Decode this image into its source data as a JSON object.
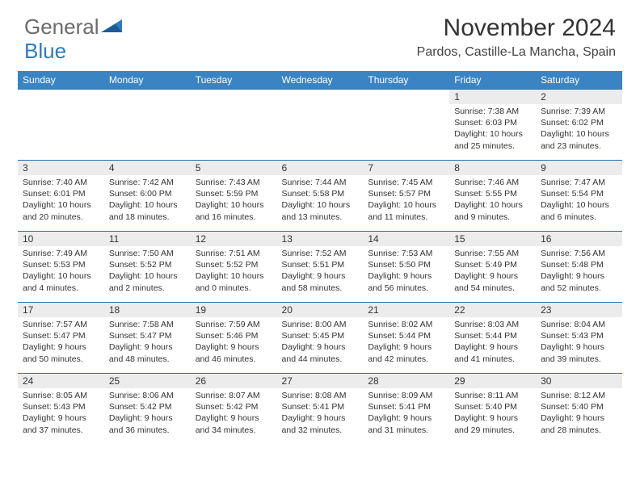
{
  "brand": {
    "part1": "General",
    "part2": "Blue"
  },
  "title": "November 2024",
  "location": "Pardos, Castille-La Mancha, Spain",
  "colors": {
    "header_bg": "#3a84c4",
    "header_text": "#ffffff",
    "border": "#2d6fa8",
    "daynum_bg": "#ececec",
    "text": "#333333",
    "brand_gray": "#6b6b6b",
    "brand_blue": "#2d7bc0",
    "page_bg": "#ffffff"
  },
  "typography": {
    "title_fontsize": 30,
    "location_fontsize": 16,
    "header_fontsize": 12,
    "daynum_fontsize": 12,
    "cell_fontsize": 10.5
  },
  "layout": {
    "cols": 7,
    "rows": 5,
    "first_day_col": 5
  },
  "dayHeaders": [
    "Sunday",
    "Monday",
    "Tuesday",
    "Wednesday",
    "Thursday",
    "Friday",
    "Saturday"
  ],
  "days": [
    {
      "n": "1",
      "sr": "7:38 AM",
      "ss": "6:03 PM",
      "dl": "10 hours and 25 minutes."
    },
    {
      "n": "2",
      "sr": "7:39 AM",
      "ss": "6:02 PM",
      "dl": "10 hours and 23 minutes."
    },
    {
      "n": "3",
      "sr": "7:40 AM",
      "ss": "6:01 PM",
      "dl": "10 hours and 20 minutes."
    },
    {
      "n": "4",
      "sr": "7:42 AM",
      "ss": "6:00 PM",
      "dl": "10 hours and 18 minutes."
    },
    {
      "n": "5",
      "sr": "7:43 AM",
      "ss": "5:59 PM",
      "dl": "10 hours and 16 minutes."
    },
    {
      "n": "6",
      "sr": "7:44 AM",
      "ss": "5:58 PM",
      "dl": "10 hours and 13 minutes."
    },
    {
      "n": "7",
      "sr": "7:45 AM",
      "ss": "5:57 PM",
      "dl": "10 hours and 11 minutes."
    },
    {
      "n": "8",
      "sr": "7:46 AM",
      "ss": "5:55 PM",
      "dl": "10 hours and 9 minutes."
    },
    {
      "n": "9",
      "sr": "7:47 AM",
      "ss": "5:54 PM",
      "dl": "10 hours and 6 minutes."
    },
    {
      "n": "10",
      "sr": "7:49 AM",
      "ss": "5:53 PM",
      "dl": "10 hours and 4 minutes."
    },
    {
      "n": "11",
      "sr": "7:50 AM",
      "ss": "5:52 PM",
      "dl": "10 hours and 2 minutes."
    },
    {
      "n": "12",
      "sr": "7:51 AM",
      "ss": "5:52 PM",
      "dl": "10 hours and 0 minutes."
    },
    {
      "n": "13",
      "sr": "7:52 AM",
      "ss": "5:51 PM",
      "dl": "9 hours and 58 minutes."
    },
    {
      "n": "14",
      "sr": "7:53 AM",
      "ss": "5:50 PM",
      "dl": "9 hours and 56 minutes."
    },
    {
      "n": "15",
      "sr": "7:55 AM",
      "ss": "5:49 PM",
      "dl": "9 hours and 54 minutes."
    },
    {
      "n": "16",
      "sr": "7:56 AM",
      "ss": "5:48 PM",
      "dl": "9 hours and 52 minutes."
    },
    {
      "n": "17",
      "sr": "7:57 AM",
      "ss": "5:47 PM",
      "dl": "9 hours and 50 minutes."
    },
    {
      "n": "18",
      "sr": "7:58 AM",
      "ss": "5:47 PM",
      "dl": "9 hours and 48 minutes."
    },
    {
      "n": "19",
      "sr": "7:59 AM",
      "ss": "5:46 PM",
      "dl": "9 hours and 46 minutes."
    },
    {
      "n": "20",
      "sr": "8:00 AM",
      "ss": "5:45 PM",
      "dl": "9 hours and 44 minutes."
    },
    {
      "n": "21",
      "sr": "8:02 AM",
      "ss": "5:44 PM",
      "dl": "9 hours and 42 minutes."
    },
    {
      "n": "22",
      "sr": "8:03 AM",
      "ss": "5:44 PM",
      "dl": "9 hours and 41 minutes."
    },
    {
      "n": "23",
      "sr": "8:04 AM",
      "ss": "5:43 PM",
      "dl": "9 hours and 39 minutes."
    },
    {
      "n": "24",
      "sr": "8:05 AM",
      "ss": "5:43 PM",
      "dl": "9 hours and 37 minutes."
    },
    {
      "n": "25",
      "sr": "8:06 AM",
      "ss": "5:42 PM",
      "dl": "9 hours and 36 minutes."
    },
    {
      "n": "26",
      "sr": "8:07 AM",
      "ss": "5:42 PM",
      "dl": "9 hours and 34 minutes."
    },
    {
      "n": "27",
      "sr": "8:08 AM",
      "ss": "5:41 PM",
      "dl": "9 hours and 32 minutes."
    },
    {
      "n": "28",
      "sr": "8:09 AM",
      "ss": "5:41 PM",
      "dl": "9 hours and 31 minutes."
    },
    {
      "n": "29",
      "sr": "8:11 AM",
      "ss": "5:40 PM",
      "dl": "9 hours and 29 minutes."
    },
    {
      "n": "30",
      "sr": "8:12 AM",
      "ss": "5:40 PM",
      "dl": "9 hours and 28 minutes."
    }
  ],
  "labels": {
    "sunrise": "Sunrise:",
    "sunset": "Sunset:",
    "daylight": "Daylight:"
  }
}
